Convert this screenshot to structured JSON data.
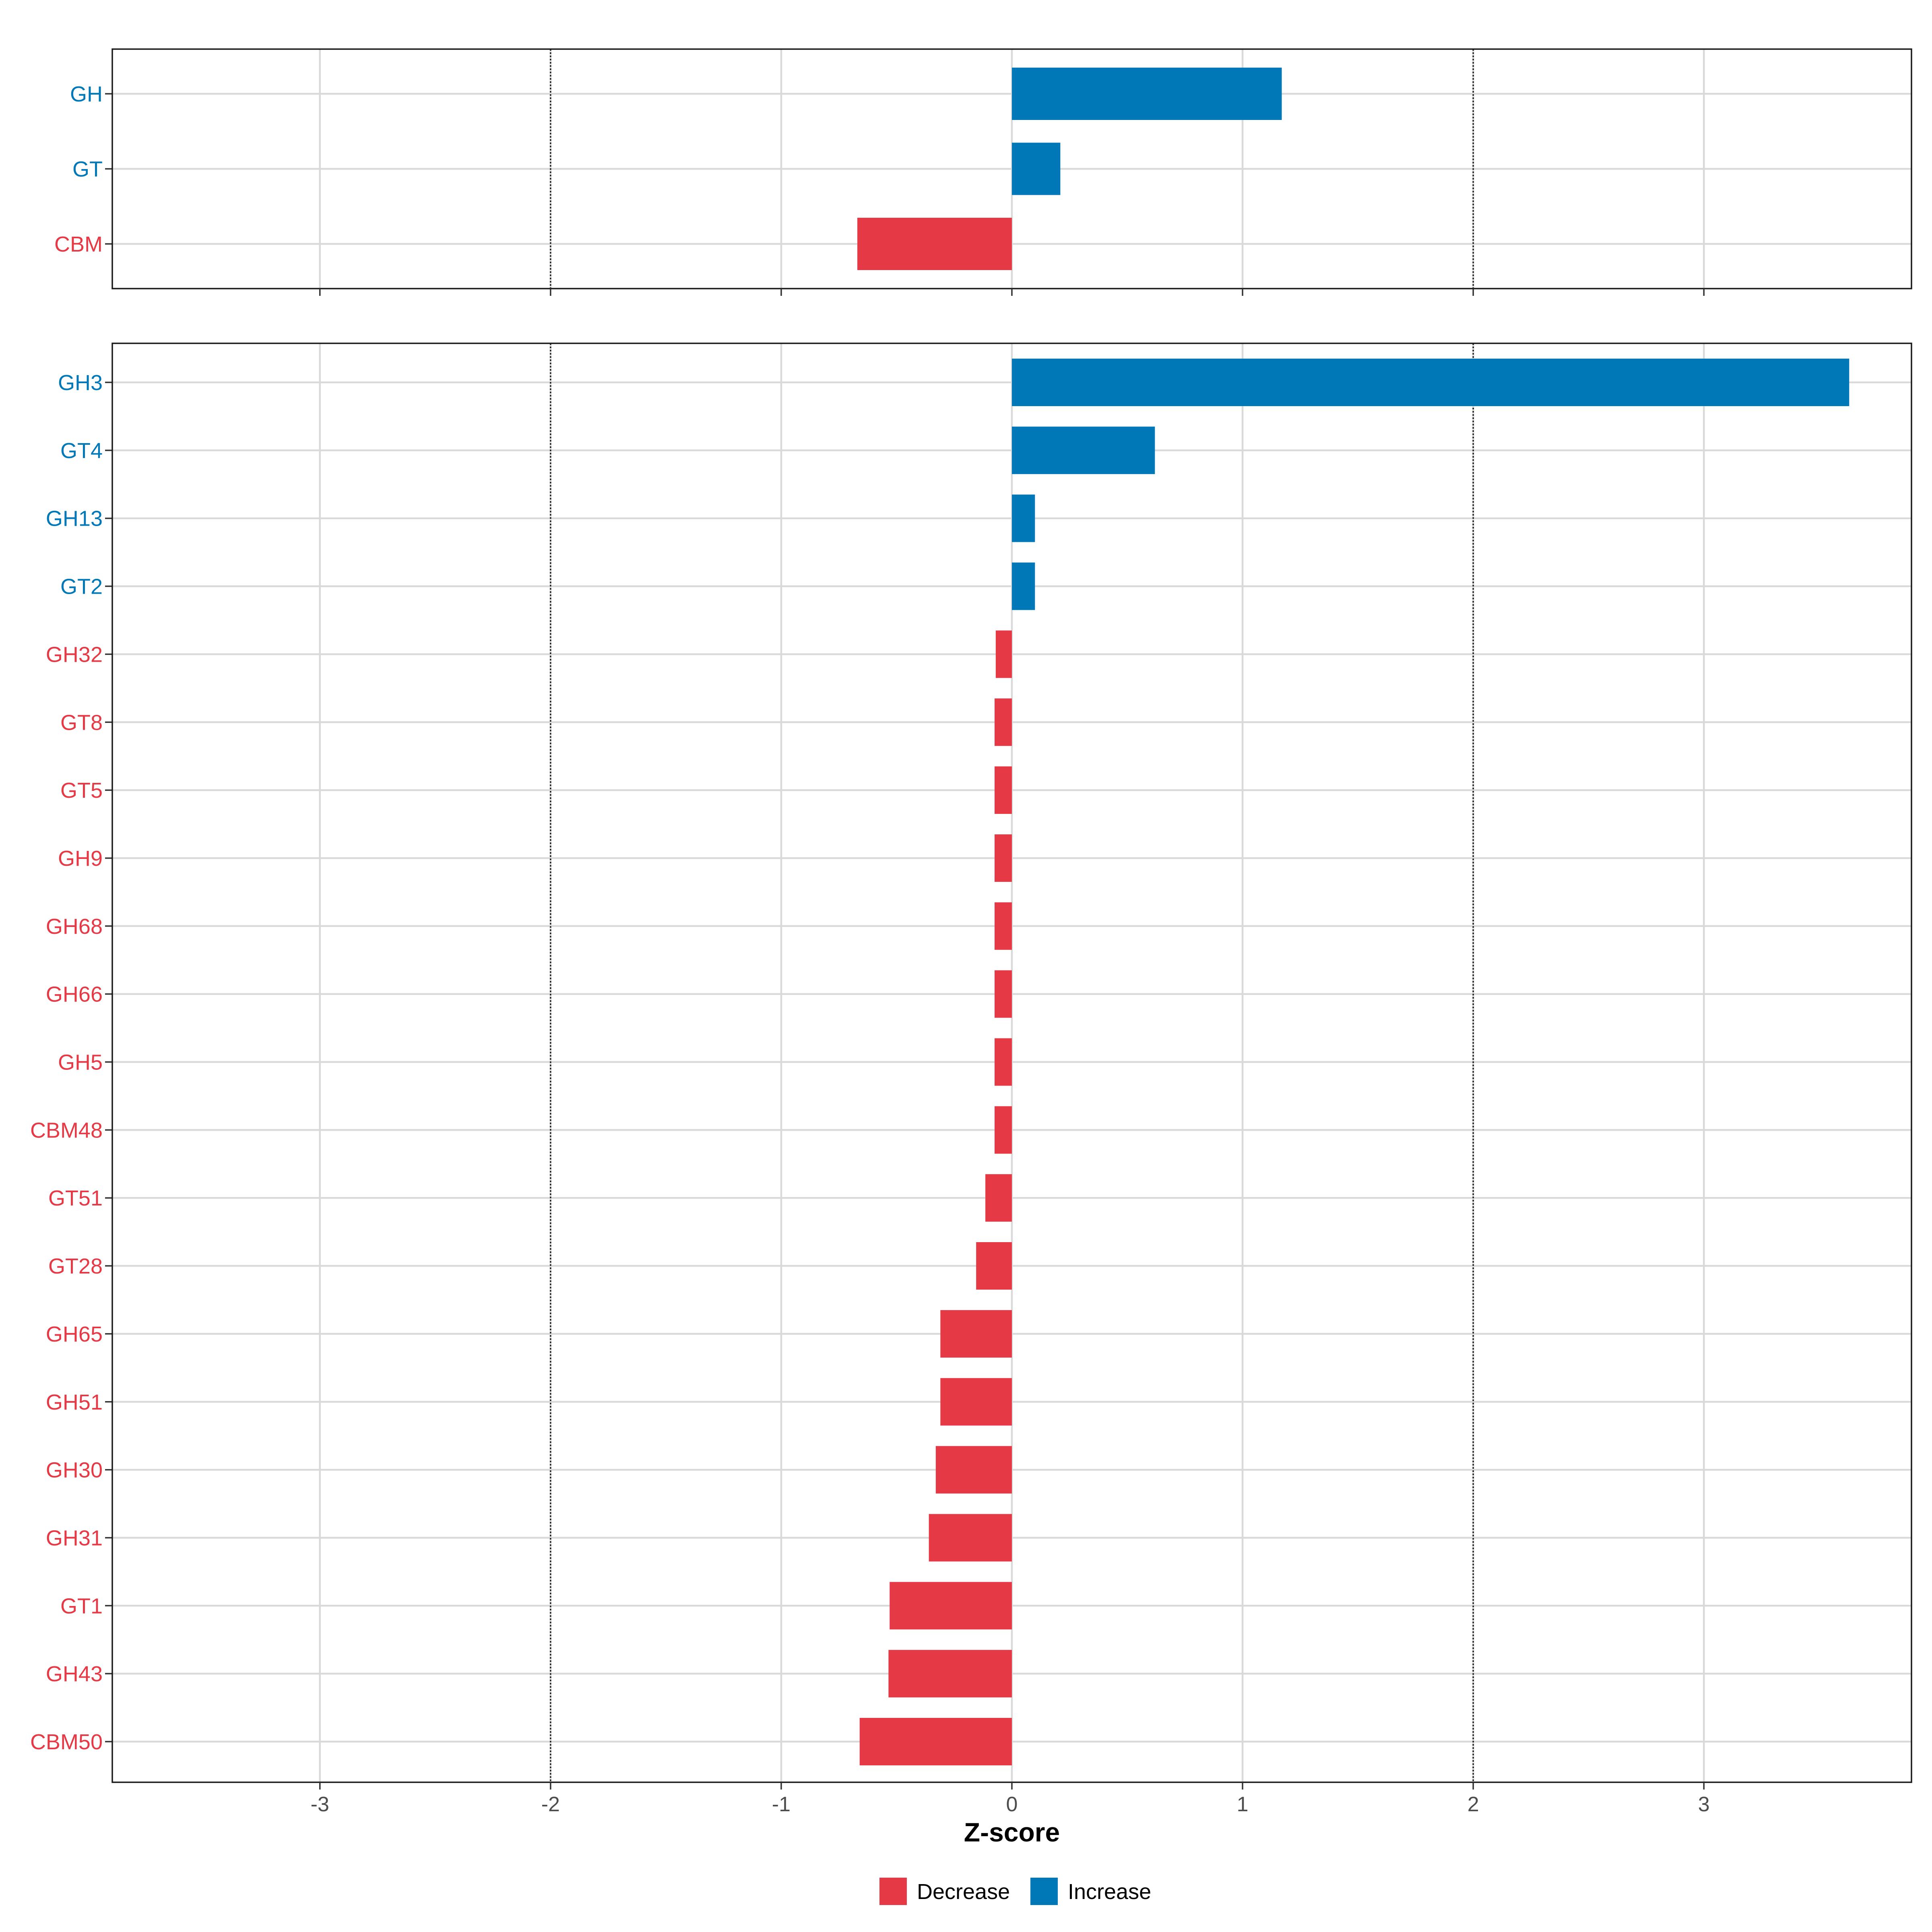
{
  "chart_data": {
    "type": "bar",
    "orientation": "horizontal",
    "xlabel": "Z-score",
    "xlim": [
      -3.9,
      3.9
    ],
    "x_ticks": [
      -3,
      -2,
      -1,
      0,
      1,
      2,
      3
    ],
    "reference_lines": [
      -2,
      2
    ],
    "grid": true,
    "legend_position": "bottom",
    "legend": [
      {
        "name": "Decrease",
        "color": "#E63946"
      },
      {
        "name": "Increase",
        "color": "#0077B6"
      }
    ],
    "panels": [
      {
        "categories": [
          "GH",
          "GT",
          "CBM"
        ],
        "values": [
          1.17,
          0.21,
          -0.67
        ]
      },
      {
        "categories": [
          "GH3",
          "GT4",
          "GH13",
          "GT2",
          "GH32",
          "GT8",
          "GT5",
          "GH9",
          "GH68",
          "GH66",
          "GH5",
          "CBM48",
          "GT51",
          "GT28",
          "GH65",
          "GH51",
          "GH30",
          "GH31",
          "GT1",
          "GH43",
          "CBM50"
        ],
        "values": [
          3.63,
          0.62,
          0.1,
          0.1,
          -0.07,
          -0.075,
          -0.075,
          -0.075,
          -0.075,
          -0.075,
          -0.075,
          -0.075,
          -0.115,
          -0.155,
          -0.31,
          -0.31,
          -0.33,
          -0.36,
          -0.53,
          -0.535,
          -0.66
        ]
      }
    ]
  }
}
